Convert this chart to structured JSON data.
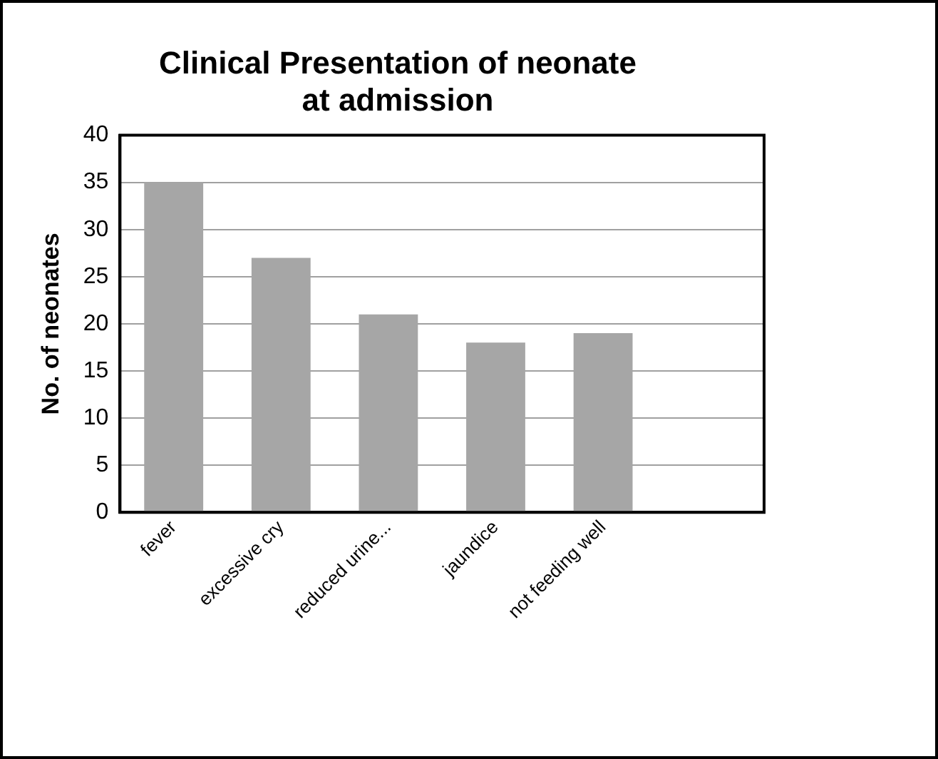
{
  "chart_data": {
    "type": "bar",
    "title": "Clinical Presentation of neonate\nat admission",
    "ylabel": "No. of neonates",
    "categories": [
      "fever",
      "excessive cry",
      "reduced urine...",
      "jaundice",
      "not feeding well",
      null
    ],
    "values": [
      35,
      27,
      21,
      18,
      19,
      null
    ],
    "color": "#a6a6a6",
    "ylim": [
      0,
      40
    ],
    "yticks": [
      0,
      5,
      10,
      15,
      20,
      25,
      30,
      35,
      40
    ],
    "grid": "y",
    "legend": false
  }
}
